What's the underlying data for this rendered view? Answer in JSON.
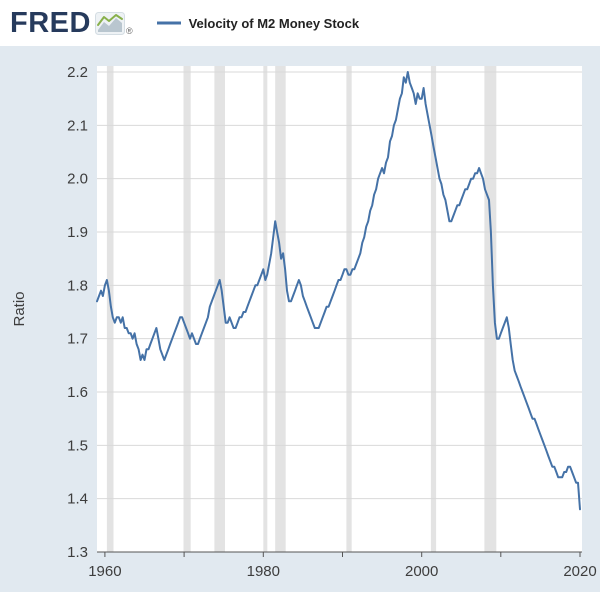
{
  "header": {
    "logo_text": "FRED",
    "registered_mark": "®",
    "legend": {
      "series_label": "Velocity of M2 Money Stock"
    }
  },
  "colors": {
    "outer_background": "#e1e9f0",
    "header_background": "#ffffff",
    "plot_background": "#ffffff",
    "line": "#4572a7",
    "recession_band": "#e3e3e3",
    "gridline": "#d9d9d9",
    "axis": "#555555",
    "tick_label": "#3d3d3d",
    "logo": "#263a5c",
    "legend_text": "#222222",
    "logo_icon_green": "#88b04b",
    "logo_icon_gray": "#b9c6cf"
  },
  "chart_data": {
    "type": "line",
    "title": "Velocity of M2 Money Stock",
    "ylabel": "Ratio",
    "xlabel": "",
    "xlim": [
      1959,
      2020.25
    ],
    "ylim": [
      1.3,
      2.2
    ],
    "y_ticks": [
      1.3,
      1.4,
      1.5,
      1.6,
      1.7,
      1.8,
      1.9,
      2.0,
      2.1,
      2.2
    ],
    "x_ticks_labeled": [
      1960,
      1980,
      2000,
      2020
    ],
    "x_ticks_minor": [
      1960,
      1970,
      1980,
      1990,
      2000,
      2010,
      2020
    ],
    "grid": true,
    "legend_position": "top-header",
    "frequency": "quarterly",
    "recession_bands": [
      [
        1960.25,
        1961.08
      ],
      [
        1969.92,
        1970.83
      ],
      [
        1973.83,
        1975.17
      ],
      [
        1980.0,
        1980.5
      ],
      [
        1981.5,
        1982.83
      ],
      [
        1990.5,
        1991.17
      ],
      [
        2001.17,
        2001.83
      ],
      [
        2007.92,
        2009.42
      ]
    ],
    "series": [
      {
        "name": "Velocity of M2 Money Stock",
        "x_start": 1959.0,
        "x_step": 0.25,
        "values": [
          1.77,
          1.78,
          1.79,
          1.78,
          1.8,
          1.81,
          1.79,
          1.76,
          1.74,
          1.73,
          1.74,
          1.74,
          1.73,
          1.74,
          1.72,
          1.72,
          1.71,
          1.71,
          1.7,
          1.71,
          1.69,
          1.68,
          1.66,
          1.67,
          1.66,
          1.68,
          1.68,
          1.69,
          1.7,
          1.71,
          1.72,
          1.7,
          1.68,
          1.67,
          1.66,
          1.67,
          1.68,
          1.69,
          1.7,
          1.71,
          1.72,
          1.73,
          1.74,
          1.74,
          1.73,
          1.72,
          1.71,
          1.7,
          1.71,
          1.7,
          1.69,
          1.69,
          1.7,
          1.71,
          1.72,
          1.73,
          1.74,
          1.76,
          1.77,
          1.78,
          1.79,
          1.8,
          1.81,
          1.79,
          1.76,
          1.73,
          1.73,
          1.74,
          1.73,
          1.72,
          1.72,
          1.73,
          1.74,
          1.74,
          1.75,
          1.75,
          1.76,
          1.77,
          1.78,
          1.79,
          1.8,
          1.8,
          1.81,
          1.82,
          1.83,
          1.81,
          1.82,
          1.84,
          1.86,
          1.89,
          1.92,
          1.9,
          1.88,
          1.85,
          1.86,
          1.83,
          1.79,
          1.77,
          1.77,
          1.78,
          1.79,
          1.8,
          1.81,
          1.8,
          1.78,
          1.77,
          1.76,
          1.75,
          1.74,
          1.73,
          1.72,
          1.72,
          1.72,
          1.73,
          1.74,
          1.75,
          1.76,
          1.76,
          1.77,
          1.78,
          1.79,
          1.8,
          1.81,
          1.81,
          1.82,
          1.83,
          1.83,
          1.82,
          1.82,
          1.83,
          1.83,
          1.84,
          1.85,
          1.86,
          1.88,
          1.89,
          1.91,
          1.92,
          1.94,
          1.95,
          1.97,
          1.98,
          2.0,
          2.01,
          2.02,
          2.01,
          2.03,
          2.04,
          2.07,
          2.08,
          2.1,
          2.11,
          2.13,
          2.15,
          2.16,
          2.19,
          2.18,
          2.2,
          2.18,
          2.17,
          2.16,
          2.14,
          2.16,
          2.15,
          2.15,
          2.17,
          2.14,
          2.12,
          2.1,
          2.08,
          2.06,
          2.04,
          2.02,
          2.0,
          1.99,
          1.97,
          1.96,
          1.94,
          1.92,
          1.92,
          1.93,
          1.94,
          1.95,
          1.95,
          1.96,
          1.97,
          1.98,
          1.98,
          1.99,
          2.0,
          2.0,
          2.01,
          2.01,
          2.02,
          2.01,
          2.0,
          1.98,
          1.97,
          1.96,
          1.9,
          1.8,
          1.73,
          1.7,
          1.7,
          1.71,
          1.72,
          1.73,
          1.74,
          1.72,
          1.69,
          1.66,
          1.64,
          1.63,
          1.62,
          1.61,
          1.6,
          1.59,
          1.58,
          1.57,
          1.56,
          1.55,
          1.55,
          1.54,
          1.53,
          1.52,
          1.51,
          1.5,
          1.49,
          1.48,
          1.47,
          1.46,
          1.46,
          1.45,
          1.44,
          1.44,
          1.44,
          1.45,
          1.45,
          1.46,
          1.46,
          1.45,
          1.44,
          1.43,
          1.43,
          1.38
        ]
      }
    ]
  }
}
